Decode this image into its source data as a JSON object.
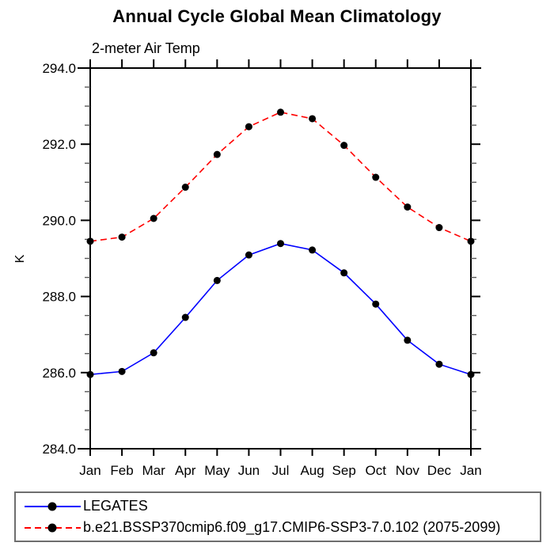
{
  "chart_data": {
    "type": "line",
    "title": "Annual Cycle Global Mean Climatology",
    "subtitle": "2-meter Air Temp",
    "ylabel": "K",
    "x_categories": [
      "Jan",
      "Feb",
      "Mar",
      "Apr",
      "May",
      "Jun",
      "Jul",
      "Aug",
      "Sep",
      "Oct",
      "Nov",
      "Dec",
      "Jan"
    ],
    "y_axis": {
      "min": 284.0,
      "max": 294.0,
      "major_step": 2.0,
      "minor_step": 0.5
    },
    "y_major_tick_labels": [
      "294.0",
      "292.0",
      "290.0",
      "288.0",
      "286.0",
      "284.0"
    ],
    "grid": false,
    "legend_position": "bottom-left",
    "series": [
      {
        "name": "LEGATES",
        "line_color": "#0000ff",
        "line_style": "solid",
        "marker": "filled-circle",
        "marker_color": "#000000",
        "values": [
          285.95,
          286.03,
          286.52,
          287.45,
          288.42,
          289.09,
          289.39,
          289.22,
          288.62,
          287.8,
          286.85,
          286.22,
          285.95
        ]
      },
      {
        "name": "b.e21.BSSP370cmip6.f09_g17.CMIP6-SSP3-7.0.102 (2075-2099)",
        "line_color": "#ff0000",
        "line_style": "dashed",
        "marker": "filled-circle",
        "marker_color": "#000000",
        "values": [
          289.45,
          289.56,
          290.05,
          290.87,
          291.73,
          292.46,
          292.84,
          292.67,
          291.97,
          291.13,
          290.35,
          289.81,
          289.45
        ]
      }
    ],
    "colors": {
      "axis": "#000000",
      "minor_tick": "#5a5a5a",
      "legend_border": "#6e6e6e",
      "background": "#ffffff"
    }
  }
}
